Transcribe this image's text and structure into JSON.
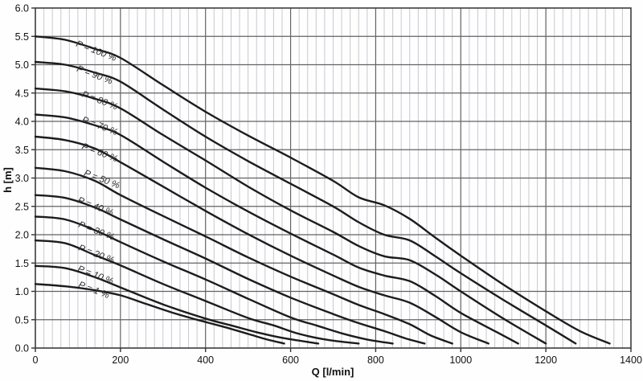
{
  "chart_data": {
    "type": "line",
    "title": "",
    "xlabel": "Q [l/min]",
    "ylabel": "h [m]",
    "xlim": [
      0,
      1400
    ],
    "ylim": [
      0,
      6
    ],
    "x_major_tick_step": 200,
    "x_minor_tick_step": 20,
    "y_major_tick_step": 0.5,
    "x_ticks": [
      {
        "label": "0",
        "value": 0
      },
      {
        "label": "200",
        "value": 200
      },
      {
        "label": "400",
        "value": 400
      },
      {
        "label": "600",
        "value": 600
      },
      {
        "label": "800",
        "value": 800
      },
      {
        "label": "1000",
        "value": 1000
      },
      {
        "label": "1200",
        "value": 1200
      },
      {
        "label": "1400",
        "value": 1400
      }
    ],
    "y_ticks": [
      {
        "label": "0.0",
        "value": 0
      },
      {
        "label": "0.5",
        "value": 0.5
      },
      {
        "label": "1.0",
        "value": 1
      },
      {
        "label": "1.5",
        "value": 1.5
      },
      {
        "label": "2.0",
        "value": 2
      },
      {
        "label": "2.5",
        "value": 2.5
      },
      {
        "label": "3.0",
        "value": 3
      },
      {
        "label": "3.5",
        "value": 3.5
      },
      {
        "label": "4.0",
        "value": 4
      },
      {
        "label": "4.5",
        "value": 4.5
      },
      {
        "label": "5.0",
        "value": 5
      },
      {
        "label": "5.5",
        "value": 5.5
      },
      {
        "label": "6.0",
        "value": 6
      }
    ],
    "grid": {
      "minor_color": "#c9c9d2",
      "major_color": "#636363",
      "border_color": "#3c3c3c",
      "tick_color": "#333333",
      "background": "#fdfefd"
    },
    "curve_color": "#1c1c1c",
    "legend_position": "labels-on-curves",
    "series": [
      {
        "name": "P = 100 %",
        "label": {
          "q": 94,
          "h": 5.33,
          "angle": 21
        },
        "points": [
          [
            0,
            5.5
          ],
          [
            70,
            5.44
          ],
          [
            140,
            5.28
          ],
          [
            200,
            5.12
          ],
          [
            300,
            4.64
          ],
          [
            400,
            4.17
          ],
          [
            500,
            3.75
          ],
          [
            600,
            3.36
          ],
          [
            700,
            2.95
          ],
          [
            760,
            2.66
          ],
          [
            820,
            2.52
          ],
          [
            880,
            2.28
          ],
          [
            940,
            1.95
          ],
          [
            1000,
            1.63
          ],
          [
            1100,
            1.12
          ],
          [
            1200,
            0.65
          ],
          [
            1280,
            0.3
          ],
          [
            1350,
            0.08
          ]
        ]
      },
      {
        "name": "P = 90 %",
        "label": {
          "q": 96,
          "h": 4.89,
          "angle": 21
        },
        "points": [
          [
            0,
            5.05
          ],
          [
            70,
            5.0
          ],
          [
            140,
            4.86
          ],
          [
            200,
            4.7
          ],
          [
            300,
            4.21
          ],
          [
            400,
            3.73
          ],
          [
            500,
            3.3
          ],
          [
            600,
            2.9
          ],
          [
            700,
            2.5
          ],
          [
            760,
            2.22
          ],
          [
            820,
            2.0
          ],
          [
            880,
            1.9
          ],
          [
            940,
            1.62
          ],
          [
            1000,
            1.32
          ],
          [
            1100,
            0.85
          ],
          [
            1200,
            0.4
          ],
          [
            1270,
            0.08
          ]
        ]
      },
      {
        "name": "P = 80 %",
        "label": {
          "q": 108,
          "h": 4.44,
          "angle": 21
        },
        "points": [
          [
            0,
            4.58
          ],
          [
            70,
            4.53
          ],
          [
            140,
            4.4
          ],
          [
            200,
            4.23
          ],
          [
            300,
            3.76
          ],
          [
            400,
            3.31
          ],
          [
            500,
            2.85
          ],
          [
            600,
            2.43
          ],
          [
            700,
            2.05
          ],
          [
            760,
            1.8
          ],
          [
            820,
            1.62
          ],
          [
            880,
            1.55
          ],
          [
            940,
            1.3
          ],
          [
            1000,
            1.0
          ],
          [
            1100,
            0.52
          ],
          [
            1200,
            0.08
          ]
        ]
      },
      {
        "name": "P = 70 %",
        "label": {
          "q": 108,
          "h": 3.99,
          "angle": 21
        },
        "points": [
          [
            0,
            4.12
          ],
          [
            70,
            4.07
          ],
          [
            140,
            3.93
          ],
          [
            200,
            3.76
          ],
          [
            300,
            3.29
          ],
          [
            400,
            2.83
          ],
          [
            500,
            2.41
          ],
          [
            600,
            2.02
          ],
          [
            700,
            1.65
          ],
          [
            760,
            1.42
          ],
          [
            820,
            1.28
          ],
          [
            880,
            1.18
          ],
          [
            940,
            0.92
          ],
          [
            1000,
            0.62
          ],
          [
            1080,
            0.3
          ],
          [
            1135,
            0.08
          ]
        ]
      },
      {
        "name": "P = 60 %",
        "label": {
          "q": 108,
          "h": 3.52,
          "angle": 21
        },
        "points": [
          [
            0,
            3.73
          ],
          [
            70,
            3.67
          ],
          [
            140,
            3.52
          ],
          [
            200,
            3.28
          ],
          [
            300,
            2.85
          ],
          [
            400,
            2.42
          ],
          [
            500,
            2.01
          ],
          [
            600,
            1.63
          ],
          [
            700,
            1.28
          ],
          [
            760,
            1.08
          ],
          [
            820,
            0.93
          ],
          [
            880,
            0.8
          ],
          [
            940,
            0.55
          ],
          [
            1000,
            0.28
          ],
          [
            1065,
            0.08
          ]
        ]
      },
      {
        "name": "P = 50 %",
        "label": {
          "q": 113,
          "h": 3.05,
          "angle": 21
        },
        "points": [
          [
            0,
            3.18
          ],
          [
            70,
            3.12
          ],
          [
            140,
            2.95
          ],
          [
            200,
            2.7
          ],
          [
            300,
            2.33
          ],
          [
            400,
            1.97
          ],
          [
            500,
            1.6
          ],
          [
            600,
            1.26
          ],
          [
            700,
            0.95
          ],
          [
            760,
            0.76
          ],
          [
            820,
            0.6
          ],
          [
            880,
            0.42
          ],
          [
            930,
            0.22
          ],
          [
            980,
            0.08
          ]
        ]
      },
      {
        "name": "P = 40 %",
        "label": {
          "q": 98,
          "h": 2.57,
          "angle": 21
        },
        "points": [
          [
            0,
            2.7
          ],
          [
            70,
            2.65
          ],
          [
            140,
            2.48
          ],
          [
            200,
            2.27
          ],
          [
            300,
            1.92
          ],
          [
            400,
            1.58
          ],
          [
            500,
            1.22
          ],
          [
            600,
            0.89
          ],
          [
            700,
            0.6
          ],
          [
            760,
            0.44
          ],
          [
            820,
            0.3
          ],
          [
            870,
            0.17
          ],
          [
            915,
            0.08
          ]
        ]
      },
      {
        "name": "P = 30 %",
        "label": {
          "q": 100,
          "h": 2.14,
          "angle": 21
        },
        "points": [
          [
            0,
            2.32
          ],
          [
            70,
            2.27
          ],
          [
            140,
            2.08
          ],
          [
            200,
            1.87
          ],
          [
            300,
            1.53
          ],
          [
            400,
            1.21
          ],
          [
            500,
            0.87
          ],
          [
            600,
            0.54
          ],
          [
            660,
            0.4
          ],
          [
            720,
            0.26
          ],
          [
            780,
            0.15
          ],
          [
            840,
            0.08
          ]
        ]
      },
      {
        "name": "P = 20 %",
        "label": {
          "q": 100,
          "h": 1.73,
          "angle": 21
        },
        "points": [
          [
            0,
            1.9
          ],
          [
            70,
            1.85
          ],
          [
            140,
            1.64
          ],
          [
            200,
            1.46
          ],
          [
            300,
            1.13
          ],
          [
            400,
            0.83
          ],
          [
            500,
            0.53
          ],
          [
            560,
            0.4
          ],
          [
            620,
            0.25
          ],
          [
            690,
            0.14
          ],
          [
            760,
            0.08
          ]
        ]
      },
      {
        "name": "P = 10 %",
        "label": {
          "q": 98,
          "h": 1.36,
          "angle": 21
        },
        "points": [
          [
            0,
            1.45
          ],
          [
            70,
            1.41
          ],
          [
            140,
            1.25
          ],
          [
            200,
            1.07
          ],
          [
            300,
            0.77
          ],
          [
            400,
            0.52
          ],
          [
            460,
            0.4
          ],
          [
            520,
            0.28
          ],
          [
            580,
            0.18
          ],
          [
            665,
            0.08
          ]
        ]
      },
      {
        "name": "P = 1 %",
        "label": {
          "q": 100,
          "h": 1.08,
          "angle": 21
        },
        "points": [
          [
            0,
            1.13
          ],
          [
            70,
            1.09
          ],
          [
            140,
            1.02
          ],
          [
            200,
            0.93
          ],
          [
            260,
            0.78
          ],
          [
            320,
            0.63
          ],
          [
            380,
            0.5
          ],
          [
            440,
            0.38
          ],
          [
            500,
            0.25
          ],
          [
            545,
            0.15
          ],
          [
            585,
            0.08
          ]
        ]
      }
    ]
  }
}
